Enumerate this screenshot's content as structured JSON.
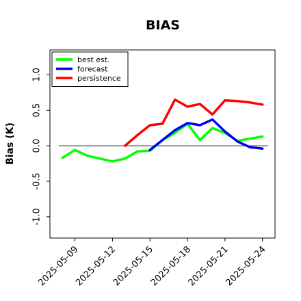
{
  "chart_data": {
    "type": "line",
    "title": "BIAS",
    "xlabel": "",
    "ylabel": "Bias (K)",
    "ylim": [
      -1.3,
      1.35
    ],
    "xlim": [
      "2025-05-07",
      "2025-05-25"
    ],
    "yticks": [
      "-1.0",
      "-0.5",
      "0.0",
      "0.5",
      "1.0"
    ],
    "ytick_values": [
      -1.0,
      -0.5,
      0.0,
      0.5,
      1.0
    ],
    "xticks": [
      "2025-05-09",
      "2025-05-12",
      "2025-05-15",
      "2025-05-18",
      "2025-05-21",
      "2025-05-24"
    ],
    "highlight_tick": "2025-05-15",
    "highlight_color": "#228B22",
    "zero_line": true,
    "grid": false,
    "legend_position": "top-left",
    "series": [
      {
        "name": "best est.",
        "color": "#00ff00",
        "x": [
          "2025-05-08",
          "2025-05-09",
          "2025-05-10",
          "2025-05-11",
          "2025-05-12",
          "2025-05-13",
          "2025-05-14",
          "2025-05-15",
          "2025-05-16",
          "2025-05-17",
          "2025-05-18",
          "2025-05-19",
          "2025-05-20",
          "2025-05-21",
          "2025-05-22",
          "2025-05-23",
          "2025-05-24"
        ],
        "values": [
          -0.17,
          -0.06,
          -0.14,
          -0.18,
          -0.22,
          -0.18,
          -0.08,
          -0.07,
          0.08,
          0.18,
          0.31,
          0.08,
          0.25,
          0.18,
          0.07,
          0.1,
          0.13
        ]
      },
      {
        "name": "forecast",
        "color": "#0000ff",
        "x": [
          "2025-05-15",
          "2025-05-16",
          "2025-05-17",
          "2025-05-18",
          "2025-05-19",
          "2025-05-20",
          "2025-05-21",
          "2025-05-22",
          "2025-05-23",
          "2025-05-24"
        ],
        "values": [
          -0.06,
          0.08,
          0.22,
          0.32,
          0.29,
          0.37,
          0.2,
          0.06,
          -0.02,
          -0.04
        ]
      },
      {
        "name": "persistence",
        "color": "#ff0000",
        "x": [
          "2025-05-13",
          "2025-05-14",
          "2025-05-15",
          "2025-05-16",
          "2025-05-17",
          "2025-05-18",
          "2025-05-19",
          "2025-05-20",
          "2025-05-21",
          "2025-05-22",
          "2025-05-23",
          "2025-05-24"
        ],
        "values": [
          0.0,
          0.15,
          0.29,
          0.31,
          0.65,
          0.55,
          0.59,
          0.44,
          0.64,
          0.63,
          0.61,
          0.58
        ]
      }
    ]
  }
}
